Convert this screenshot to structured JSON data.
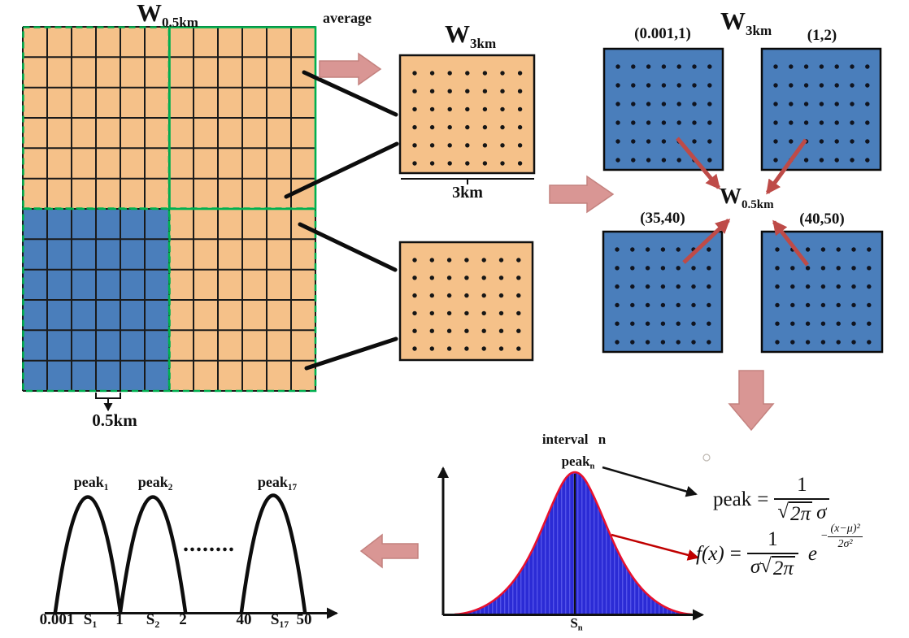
{
  "colors": {
    "orange_cell": "#F5C189",
    "blue_cell": "#4A7EBB",
    "green_border": "#00B050",
    "pink_arrow_fill": "#D99694",
    "pink_arrow_stroke": "#C4827F",
    "red_arrow": "#BE4B48",
    "gauss_fill": "#2B2BD5",
    "gauss_outline": "#E8112D",
    "line_black": "#111111"
  },
  "left_grid": {
    "title": {
      "base": "W",
      "sub": "0.5km"
    },
    "cell_size_label": "0.5km"
  },
  "average_label": "average",
  "w3km": {
    "title": {
      "base": "W",
      "sub": "3km"
    },
    "size_label": "3km"
  },
  "intervals": {
    "title": {
      "base": "W",
      "sub": "3km"
    },
    "center_label": {
      "base": "W",
      "sub": "0.5km"
    },
    "squares": [
      {
        "label": "(0.001,1)"
      },
      {
        "label": "(1,2)"
      },
      {
        "label": "(35,40)"
      },
      {
        "label": "(40,50)"
      }
    ]
  },
  "gauss": {
    "interval_label": "interval n",
    "peak_label": {
      "base": "peak",
      "sub": "n"
    },
    "axis_label": {
      "base": "S",
      "sub": "n"
    },
    "peak_formula": {
      "lhs": "peak",
      "eq": "=",
      "numerator": "1",
      "radical": "√",
      "sqrt_content": "2π",
      "den_suffix": "σ"
    },
    "fx_formula": {
      "lhs": "f(x)",
      "eq": "=",
      "numerator": "1",
      "den_prefix": "σ",
      "radical": "√",
      "sqrt_content": "2π",
      "base_e": "e",
      "exp_minus": "−",
      "exp_num": "(x−μ)²",
      "exp_den": "2σ²"
    }
  },
  "peaks_chart": {
    "peak_labels": [
      {
        "base": "peak",
        "sub": "1"
      },
      {
        "base": "peak",
        "sub": "2"
      },
      {
        "base": "peak",
        "sub": "17"
      }
    ],
    "ellipsis": "........",
    "x_ticks": [
      {
        "base": "0.001",
        "sub": ""
      },
      {
        "base": "S",
        "sub": "1"
      },
      {
        "base": "1",
        "sub": ""
      },
      {
        "base": "S",
        "sub": "2"
      },
      {
        "base": "2",
        "sub": ""
      },
      {
        "base": "40",
        "sub": ""
      },
      {
        "base": "S",
        "sub": "17"
      },
      {
        "base": "50",
        "sub": ""
      }
    ]
  }
}
